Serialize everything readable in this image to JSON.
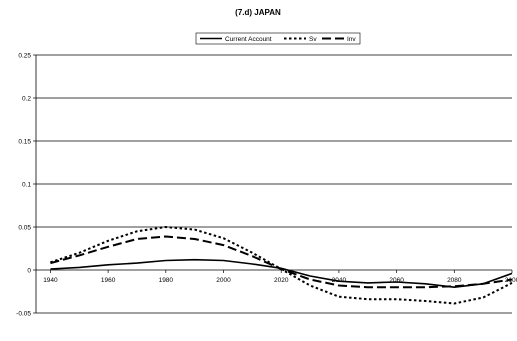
{
  "chart_data": {
    "type": "line",
    "title": "(7.d) JAPAN",
    "xlabel": "",
    "ylabel": "",
    "xlim": [
      1935,
      2100
    ],
    "ylim": [
      -0.05,
      0.25
    ],
    "yticks": [
      -0.05,
      0,
      0.05,
      0.1,
      0.15,
      0.2,
      0.25
    ],
    "ytick_labels": [
      "-0.05",
      "0",
      "0.05",
      "0.1",
      "0.15",
      "0.2",
      "0.25"
    ],
    "xticks": [
      1940,
      1960,
      1980,
      2000,
      2020,
      2040,
      2060,
      2080,
      2100
    ],
    "xtick_labels": [
      "1940",
      "1960",
      "1980",
      "2000",
      "2020",
      "2040",
      "2060",
      "2080",
      "2100"
    ],
    "grid": "horizontal",
    "legend_position": "top",
    "x": [
      1940,
      1950,
      1960,
      1970,
      1980,
      1990,
      2000,
      2010,
      2020,
      2030,
      2040,
      2050,
      2060,
      2070,
      2080,
      2090,
      2100
    ],
    "series": [
      {
        "name": "Current Account",
        "style": "solid",
        "color": "#000000",
        "values": [
          0.001,
          0.003,
          0.006,
          0.008,
          0.011,
          0.012,
          0.011,
          0.007,
          0.002,
          -0.007,
          -0.013,
          -0.015,
          -0.014,
          -0.016,
          -0.02,
          -0.016,
          -0.004
        ]
      },
      {
        "name": "Sv",
        "style": "dotted",
        "color": "#000000",
        "values": [
          0.009,
          0.02,
          0.034,
          0.045,
          0.05,
          0.047,
          0.037,
          0.02,
          0.001,
          -0.018,
          -0.031,
          -0.034,
          -0.034,
          -0.036,
          -0.039,
          -0.032,
          -0.015
        ]
      },
      {
        "name": "Inv",
        "style": "dashed",
        "color": "#000000",
        "values": [
          0.008,
          0.017,
          0.027,
          0.036,
          0.039,
          0.036,
          0.029,
          0.016,
          0.001,
          -0.011,
          -0.018,
          -0.02,
          -0.02,
          -0.02,
          -0.019,
          -0.016,
          -0.011
        ]
      }
    ]
  }
}
